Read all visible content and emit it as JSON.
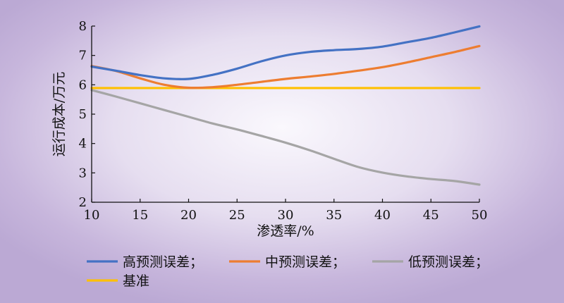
{
  "chart_data": {
    "type": "line",
    "title": "",
    "xlabel": "渗透率/%",
    "ylabel": "运行成本/万元",
    "xlim": [
      10,
      50
    ],
    "ylim": [
      2,
      8
    ],
    "xticks": [
      10,
      15,
      20,
      25,
      30,
      35,
      40,
      45,
      50
    ],
    "yticks": [
      2,
      3,
      4,
      5,
      6,
      7,
      8
    ],
    "grid": false,
    "legend_position": "bottom",
    "series": [
      {
        "name": "高预测误差；",
        "color": "#4472c4",
        "x": [
          10,
          12.5,
          15,
          17.5,
          20,
          22.5,
          25,
          27.5,
          30,
          32.5,
          35,
          37.5,
          40,
          42.5,
          45,
          47.5,
          50
        ],
        "y": [
          6.62,
          6.48,
          6.33,
          6.22,
          6.2,
          6.34,
          6.55,
          6.8,
          7.0,
          7.12,
          7.18,
          7.22,
          7.3,
          7.45,
          7.6,
          7.79,
          7.99
        ]
      },
      {
        "name": "中预测误差；",
        "color": "#ed7d31",
        "x": [
          10,
          12.5,
          15,
          17.5,
          20,
          22.5,
          25,
          27.5,
          30,
          32.5,
          35,
          37.5,
          40,
          42.5,
          45,
          47.5,
          50
        ],
        "y": [
          6.64,
          6.47,
          6.22,
          6.0,
          5.9,
          5.92,
          6.0,
          6.1,
          6.2,
          6.28,
          6.37,
          6.48,
          6.6,
          6.76,
          6.94,
          7.12,
          7.32
        ]
      },
      {
        "name": "低预测误差；",
        "color": "#a5a5a5",
        "x": [
          10,
          12.5,
          15,
          17.5,
          20,
          22.5,
          25,
          27.5,
          30,
          32.5,
          35,
          37.5,
          40,
          42.5,
          45,
          47.5,
          50
        ],
        "y": [
          5.82,
          5.6,
          5.37,
          5.14,
          4.91,
          4.68,
          4.48,
          4.26,
          4.03,
          3.77,
          3.48,
          3.2,
          3.01,
          2.88,
          2.79,
          2.72,
          2.6
        ]
      },
      {
        "name": "基准",
        "color": "#ffc000",
        "x": [
          10,
          50
        ],
        "y": [
          5.89,
          5.89
        ]
      }
    ]
  }
}
